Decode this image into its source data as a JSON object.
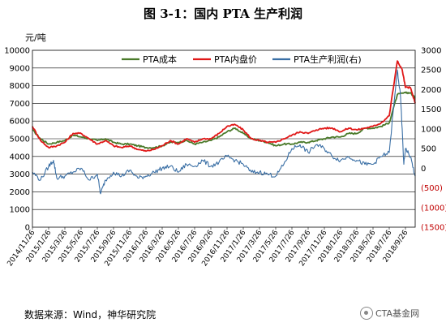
{
  "title": "图 3-1：国内 PTA 生产利润",
  "source": "数据来源：Wind，神华研究院",
  "watermark": "CTA基金网",
  "watermark_icon": "wechat-icon",
  "chart_data": {
    "type": "line",
    "left_unit_label": "元/吨",
    "left_ylim": [
      0,
      10000
    ],
    "left_ticks": [
      "0",
      "1000",
      "2000",
      "3000",
      "4000",
      "5000",
      "6000",
      "7000",
      "8000",
      "9000",
      "10000"
    ],
    "right_ylim": [
      -1500,
      3000
    ],
    "right_ticks": [
      "(1500)",
      "(1000)",
      "(500)",
      "0",
      "500",
      "1000",
      "1500",
      "2000",
      "2500",
      "3000"
    ],
    "right_tick_values": [
      -1500,
      -1000,
      -500,
      0,
      500,
      1000,
      1500,
      2000,
      2500,
      3000
    ],
    "grid": true,
    "legend_position": "top",
    "x_categories": [
      "2014/11/26",
      "2015/1/26",
      "2015/3/26",
      "2015/5/26",
      "2015/7/26",
      "2015/9/26",
      "2015/11/26",
      "2016/1/26",
      "2016/3/26",
      "2016/5/26",
      "2016/7/26",
      "2016/9/26",
      "2016/11/26",
      "2017/1/26",
      "2017/3/26",
      "2017/5/26",
      "2017/7/26",
      "2017/9/26",
      "2017/11/26",
      "2018/1/26",
      "2018/3/26",
      "2018/5/26",
      "2018/7/26",
      "2018/9/26"
    ],
    "series": [
      {
        "name": "PTA成本",
        "axis": "left",
        "color": "#4a7a2a",
        "values": [
          [
            0,
            5500
          ],
          [
            0.5,
            5000
          ],
          [
            1,
            4700
          ],
          [
            1.5,
            4800
          ],
          [
            2,
            4900
          ],
          [
            2.5,
            5200
          ],
          [
            3,
            5100
          ],
          [
            3.5,
            5000
          ],
          [
            4,
            4900
          ],
          [
            4.5,
            5000
          ],
          [
            5,
            4800
          ],
          [
            5.5,
            4700
          ],
          [
            6,
            4700
          ],
          [
            6.5,
            4600
          ],
          [
            7,
            4500
          ],
          [
            7.5,
            4500
          ],
          [
            8,
            4600
          ],
          [
            8.5,
            4800
          ],
          [
            9,
            4800
          ],
          [
            9.5,
            4900
          ],
          [
            10,
            4700
          ],
          [
            10.5,
            4800
          ],
          [
            11,
            4900
          ],
          [
            11.5,
            5100
          ],
          [
            12,
            5400
          ],
          [
            12.5,
            5600
          ],
          [
            13,
            5300
          ],
          [
            13.5,
            5000
          ],
          [
            14,
            4900
          ],
          [
            14.5,
            4800
          ],
          [
            15,
            4600
          ],
          [
            15.5,
            4700
          ],
          [
            16,
            4700
          ],
          [
            16.5,
            4800
          ],
          [
            17,
            4800
          ],
          [
            17.5,
            4900
          ],
          [
            18,
            5000
          ],
          [
            18.5,
            5100
          ],
          [
            19,
            5100
          ],
          [
            19.5,
            5300
          ],
          [
            20,
            5300
          ],
          [
            20.5,
            5600
          ],
          [
            21,
            5600
          ],
          [
            21.5,
            5700
          ],
          [
            22,
            5900
          ],
          [
            22.5,
            7500
          ],
          [
            23,
            7600
          ],
          [
            23.3,
            7600
          ],
          [
            23.6,
            7300
          ]
        ]
      },
      {
        "name": "PTA内盘价",
        "axis": "left",
        "color": "#e01818",
        "values": [
          [
            0,
            5700
          ],
          [
            0.5,
            4900
          ],
          [
            1,
            4500
          ],
          [
            1.5,
            4600
          ],
          [
            2,
            4800
          ],
          [
            2.5,
            5300
          ],
          [
            3,
            5300
          ],
          [
            3.5,
            5000
          ],
          [
            4,
            4700
          ],
          [
            4.5,
            4900
          ],
          [
            5,
            4600
          ],
          [
            5.5,
            4500
          ],
          [
            6,
            4600
          ],
          [
            6.5,
            4400
          ],
          [
            7,
            4300
          ],
          [
            7.5,
            4400
          ],
          [
            8,
            4600
          ],
          [
            8.5,
            4900
          ],
          [
            9,
            4700
          ],
          [
            9.5,
            5000
          ],
          [
            10,
            4800
          ],
          [
            10.5,
            5000
          ],
          [
            11,
            5000
          ],
          [
            11.5,
            5300
          ],
          [
            12,
            5700
          ],
          [
            12.5,
            5800
          ],
          [
            13,
            5500
          ],
          [
            13.5,
            5000
          ],
          [
            14,
            4900
          ],
          [
            14.5,
            4800
          ],
          [
            15,
            4800
          ],
          [
            15.5,
            5000
          ],
          [
            16,
            5200
          ],
          [
            16.5,
            5400
          ],
          [
            17,
            5300
          ],
          [
            17.5,
            5500
          ],
          [
            18,
            5600
          ],
          [
            18.5,
            5600
          ],
          [
            19,
            5400
          ],
          [
            19.5,
            5600
          ],
          [
            20,
            5500
          ],
          [
            20.5,
            5600
          ],
          [
            21,
            5700
          ],
          [
            21.5,
            5900
          ],
          [
            22,
            6300
          ],
          [
            22.5,
            9400
          ],
          [
            22.8,
            8900
          ],
          [
            23,
            7900
          ],
          [
            23.3,
            7900
          ],
          [
            23.6,
            7000
          ]
        ]
      },
      {
        "name": "PTA生产利润(右)",
        "axis": "right",
        "color": "#3a6fa5",
        "values": [
          [
            0,
            -100
          ],
          [
            0.5,
            -300
          ],
          [
            1,
            50
          ],
          [
            1.3,
            200
          ],
          [
            1.5,
            -250
          ],
          [
            2,
            -200
          ],
          [
            2.5,
            -100
          ],
          [
            3,
            0
          ],
          [
            3.5,
            -300
          ],
          [
            4,
            -150
          ],
          [
            4.2,
            -650
          ],
          [
            4.5,
            -300
          ],
          [
            5,
            -100
          ],
          [
            5.5,
            -200
          ],
          [
            6,
            -50
          ],
          [
            6.5,
            -250
          ],
          [
            7,
            -200
          ],
          [
            7.5,
            -100
          ],
          [
            8,
            0
          ],
          [
            8.5,
            50
          ],
          [
            9,
            -100
          ],
          [
            9.5,
            100
          ],
          [
            10,
            50
          ],
          [
            10.5,
            200
          ],
          [
            11,
            50
          ],
          [
            11.5,
            150
          ],
          [
            12,
            300
          ],
          [
            12.5,
            200
          ],
          [
            13,
            100
          ],
          [
            13.5,
            -100
          ],
          [
            14,
            -100
          ],
          [
            14.5,
            -150
          ],
          [
            15,
            -200
          ],
          [
            15.5,
            100
          ],
          [
            16,
            500
          ],
          [
            16.5,
            600
          ],
          [
            17,
            400
          ],
          [
            17.5,
            600
          ],
          [
            18,
            500
          ],
          [
            18.5,
            300
          ],
          [
            19,
            200
          ],
          [
            19.5,
            300
          ],
          [
            20,
            200
          ],
          [
            20.5,
            100
          ],
          [
            21,
            100
          ],
          [
            21.5,
            300
          ],
          [
            22,
            400
          ],
          [
            22.5,
            2500
          ],
          [
            22.7,
            1800
          ],
          [
            22.9,
            100
          ],
          [
            23,
            500
          ],
          [
            23.3,
            300
          ],
          [
            23.6,
            -200
          ]
        ]
      }
    ]
  }
}
